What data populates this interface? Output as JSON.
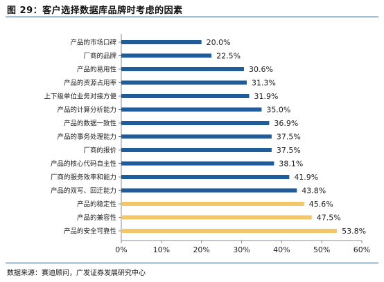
{
  "title": "图 29：客户选择数据库品牌时考虑的因素",
  "source": "数据来源：赛迪顾问，广发证券发展研究中心",
  "chart_data": {
    "type": "bar",
    "orientation": "horizontal",
    "categories": [
      "产品的市场口碑",
      "厂商的品牌",
      "产品的易用性",
      "产品的资源占用率",
      "上下级单位业务对接方便",
      "产品的计算分析能力",
      "产品的数据一致性",
      "产品的事务处理能力",
      "厂商的报价",
      "产品的核心代码自主性",
      "厂商的服务效率和能力",
      "产品的双写、回迁能力",
      "产品的稳定性",
      "产品的兼容性",
      "产品的安全可靠性"
    ],
    "values": [
      20.0,
      22.5,
      30.6,
      31.3,
      31.9,
      35.0,
      36.9,
      37.5,
      37.5,
      38.1,
      41.9,
      43.8,
      45.6,
      47.5,
      53.8
    ],
    "value_labels": [
      "20.0%",
      "22.5%",
      "30.6%",
      "31.3%",
      "31.9%",
      "35.0%",
      "36.9%",
      "37.5%",
      "37.5%",
      "38.1%",
      "41.9%",
      "43.8%",
      "45.6%",
      "47.5%",
      "53.8%"
    ],
    "highlighted": [
      false,
      false,
      false,
      false,
      false,
      false,
      false,
      false,
      false,
      false,
      false,
      false,
      true,
      true,
      true
    ],
    "xlim": [
      0,
      60
    ],
    "xticks": [
      0,
      10,
      20,
      30,
      40,
      50,
      60
    ],
    "xtick_labels": [
      "0%",
      "10%",
      "20%",
      "30%",
      "40%",
      "50%",
      "60%"
    ],
    "grid": false,
    "colors": {
      "bar": "#1f5c99",
      "highlight": "#f2c76c",
      "rule": "#2a4f7e"
    }
  }
}
